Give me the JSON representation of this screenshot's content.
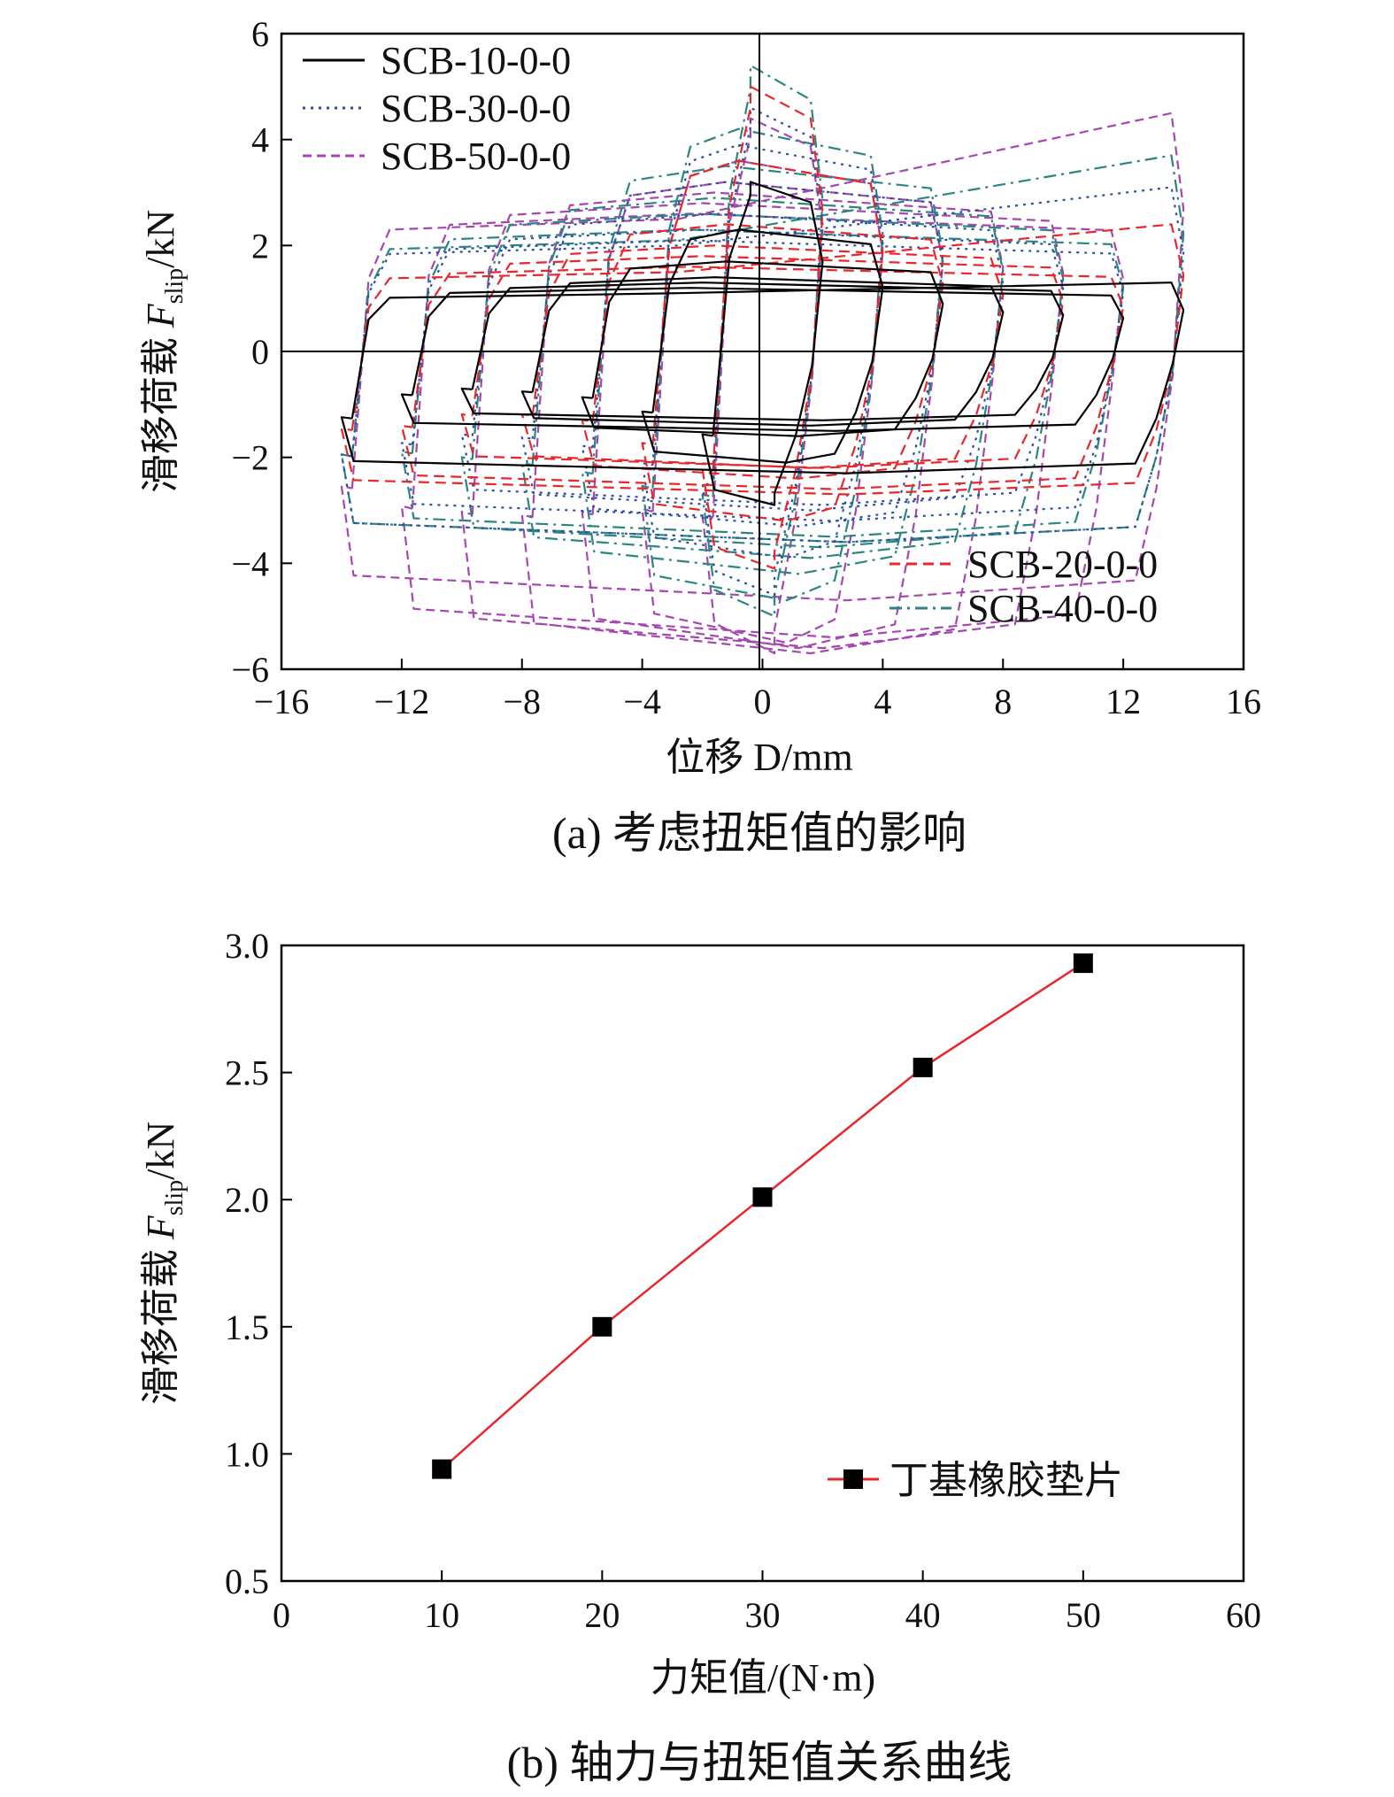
{
  "chart_data": [
    {
      "type": "line",
      "caption": "(a) 考虑扭矩值的影响",
      "xlabel": "位移 D/mm",
      "ylabel_prefix": "滑移荷载 ",
      "ylabel_var": "F",
      "ylabel_sub": "slip",
      "ylabel_unit": "/kN",
      "xlim": [
        -16,
        16
      ],
      "ylim": [
        -6,
        6
      ],
      "xticks": [
        -16,
        -12,
        -8,
        -4,
        0,
        4,
        8,
        12,
        16
      ],
      "xtick_labels": [
        "−16",
        "−12",
        "−8",
        "−4",
        "0",
        "4",
        "8",
        "12",
        "16"
      ],
      "yticks": [
        -6,
        -4,
        -2,
        0,
        2,
        4,
        6
      ],
      "ytick_labels": [
        "−6",
        "−4",
        "−2",
        "0",
        "2",
        "4",
        "6"
      ],
      "legend_top_left": [
        "SCB-10-0-0",
        "SCB-30-0-0",
        "SCB-50-0-0"
      ],
      "legend_bottom_right": [
        "SCB-20-0-0",
        "SCB-40-0-0"
      ],
      "series": [
        {
          "name": "SCB-10-0-0",
          "color": "#000000",
          "dash": "none",
          "amplitudes": [
            2,
            4,
            6,
            8,
            10,
            12,
            14
          ],
          "fpos": [
            3.2,
            2.3,
            1.7,
            1.4,
            1.3,
            1.2,
            1.1
          ],
          "fneg": [
            2.9,
            2.1,
            1.6,
            1.4,
            1.3,
            1.5,
            2.3
          ],
          "fpos_end": 1.3
        },
        {
          "name": "SCB-20-0-0",
          "color": "#e8262b",
          "dash": "12,7",
          "amplitudes": [
            2,
            4,
            6,
            8,
            10,
            12,
            14
          ],
          "fpos": [
            5.0,
            3.6,
            2.4,
            2.0,
            1.8,
            1.6,
            1.5
          ],
          "fneg": [
            4.1,
            3.2,
            2.4,
            2.2,
            2.2,
            2.6,
            2.7
          ],
          "fpos_end": 2.4
        },
        {
          "name": "SCB-30-0-0",
          "color": "#2d4ea6",
          "dash": "3,6",
          "amplitudes": [
            2,
            4,
            6,
            8,
            10,
            12,
            14
          ],
          "fpos": [
            4.6,
            3.9,
            3.2,
            2.6,
            2.3,
            2.1,
            2.0
          ],
          "fneg": [
            4.6,
            3.9,
            3.3,
            3.0,
            2.9,
            3.2,
            3.6
          ],
          "fpos_end": 3.1
        },
        {
          "name": "SCB-40-0-0",
          "color": "#2b8580",
          "dash": "14,6,3,6",
          "amplitudes": [
            2,
            4,
            6,
            8,
            10,
            12,
            14
          ],
          "fpos": [
            5.4,
            4.2,
            3.5,
            2.9,
            2.6,
            2.3,
            2.1
          ],
          "fneg": [
            5.0,
            4.7,
            4.2,
            3.9,
            3.7,
            3.5,
            3.6
          ],
          "fpos_end": 3.7
        },
        {
          "name": "SCB-50-0-0",
          "color": "#a546b1",
          "dash": "10,6",
          "amplitudes": [
            2,
            4,
            6,
            8,
            10,
            12,
            14
          ],
          "fpos": [
            4.4,
            3.6,
            3.2,
            3.0,
            2.8,
            2.6,
            2.5
          ],
          "fneg": [
            5.7,
            5.5,
            5.6,
            5.7,
            5.6,
            5.4,
            4.7
          ],
          "fpos_end": 4.5
        }
      ]
    },
    {
      "type": "line",
      "caption": "(b) 轴力与扭矩值关系曲线",
      "xlabel": "力矩值/(N·m)",
      "ylabel_prefix": "滑移荷载 ",
      "ylabel_var": "F",
      "ylabel_sub": "slip",
      "ylabel_unit": "/kN",
      "xlim": [
        0,
        60
      ],
      "ylim": [
        0.5,
        3.0
      ],
      "xticks": [
        0,
        10,
        20,
        30,
        40,
        50,
        60
      ],
      "xtick_labels": [
        "0",
        "10",
        "20",
        "30",
        "40",
        "50",
        "60"
      ],
      "yticks": [
        0.5,
        1.0,
        1.5,
        2.0,
        2.5,
        3.0
      ],
      "ytick_labels": [
        "0.5",
        "1.0",
        "1.5",
        "2.0",
        "2.5",
        "3.0"
      ],
      "legend_position": "lower-right",
      "series": [
        {
          "name": "丁基橡胶垫片",
          "color": "#e8262b",
          "marker_color": "#000000",
          "x": [
            10,
            20,
            30,
            40,
            50
          ],
          "y": [
            0.94,
            1.5,
            2.01,
            2.52,
            2.93
          ]
        }
      ]
    }
  ]
}
